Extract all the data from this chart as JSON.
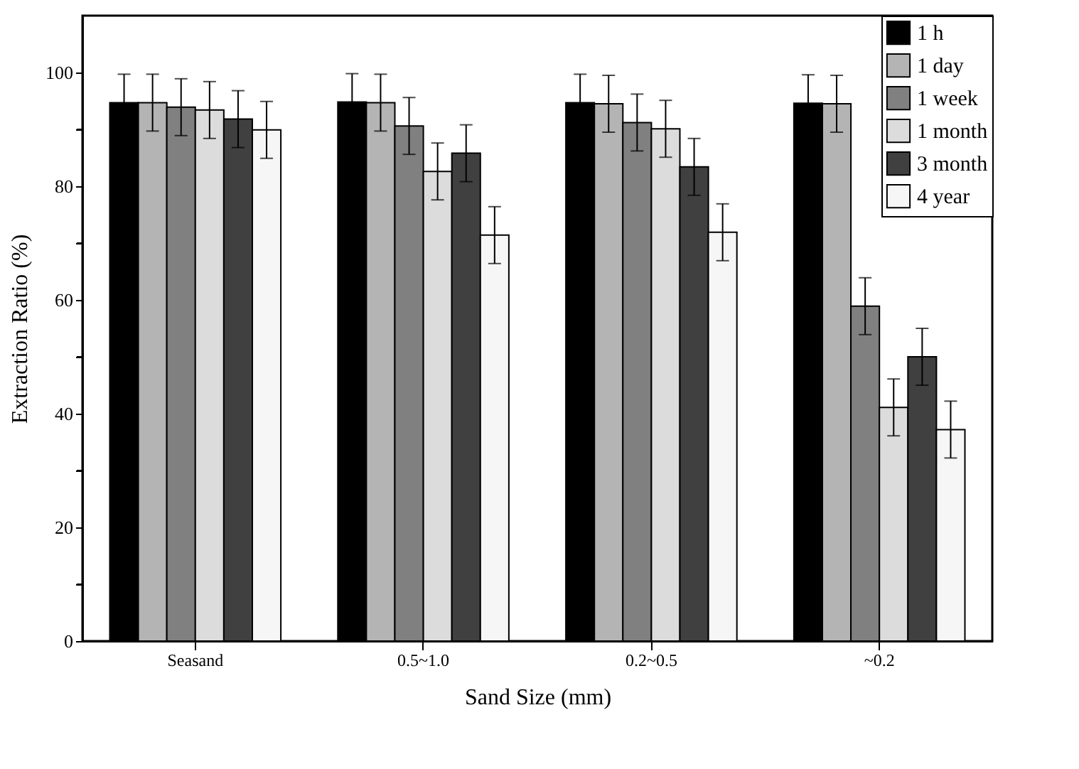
{
  "chart_data": {
    "type": "bar",
    "xlabel": "Sand Size (mm)",
    "ylabel": "Extraction Ratio (%)",
    "categories": [
      "Seasand",
      "0.5~1.0",
      "0.2~0.5",
      "~0.2"
    ],
    "series": [
      {
        "name": "1 h",
        "color": "#000000",
        "values": [
          94.7,
          94.8,
          94.7,
          94.6
        ],
        "errors": [
          5,
          5,
          5,
          5
        ]
      },
      {
        "name": "1 day",
        "color": "#b4b4b4",
        "values": [
          94.7,
          94.7,
          94.5,
          94.5
        ],
        "errors": [
          5,
          5,
          5,
          5
        ]
      },
      {
        "name": "1 week",
        "color": "#808080",
        "values": [
          93.9,
          90.6,
          91.2,
          58.9
        ],
        "errors": [
          5,
          5,
          5,
          5
        ]
      },
      {
        "name": "1 month",
        "color": "#dcdcdc",
        "values": [
          93.4,
          82.6,
          90.1,
          41.1
        ],
        "errors": [
          5,
          5,
          5,
          5
        ]
      },
      {
        "name": "3 month",
        "color": "#404040",
        "values": [
          91.8,
          85.8,
          83.4,
          50.0
        ],
        "errors": [
          5,
          5,
          5,
          5
        ]
      },
      {
        "name": "4 year",
        "color": "#f6f6f6",
        "values": [
          89.9,
          71.4,
          71.9,
          37.2
        ],
        "errors": [
          5,
          5,
          5,
          5
        ]
      }
    ],
    "ylim": [
      0,
      110
    ],
    "yticks": [
      0,
      {
        "value": 10,
        "label": null
      },
      20,
      {
        "value": 30,
        "label": null
      },
      40,
      {
        "value": 50,
        "label": null
      },
      60,
      {
        "value": 70,
        "label": null
      },
      80,
      {
        "value": 90,
        "label": null
      },
      100
    ],
    "legend": "top right",
    "grid": false
  }
}
